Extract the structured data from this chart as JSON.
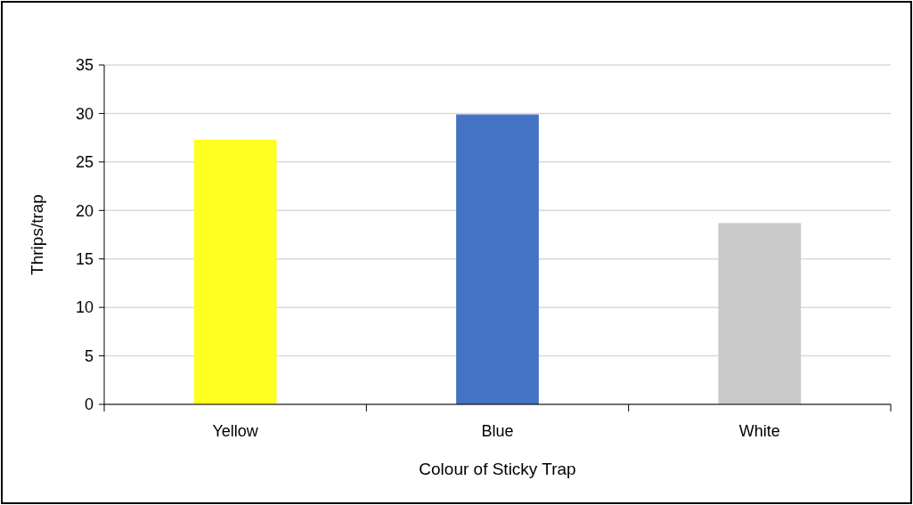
{
  "chart_data": {
    "type": "bar",
    "xlabel": "Colour of Sticky Trap",
    "ylabel": "Thrips/trap",
    "categories": [
      "Yellow",
      "Blue",
      "White"
    ],
    "values": [
      27.3,
      29.9,
      18.7
    ],
    "colors": [
      "#ffff21",
      "#4472c4",
      "#c9c9c9"
    ],
    "ylim": [
      0,
      35
    ],
    "yticks": [
      0,
      5,
      10,
      15,
      20,
      25,
      30,
      35
    ],
    "grid": "y"
  }
}
